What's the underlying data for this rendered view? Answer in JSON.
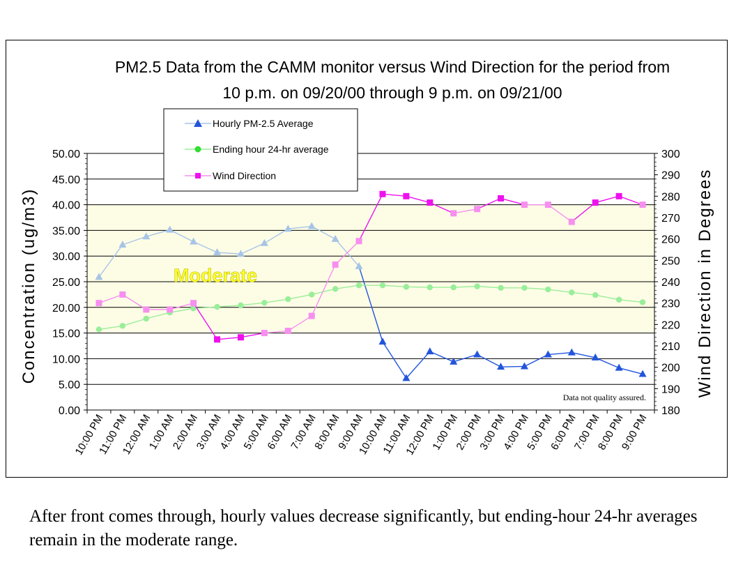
{
  "caption": "After front comes through, hourly values decrease significantly, but ending-hour 24-hr averages remain in the moderate range.",
  "chart_data": {
    "type": "line",
    "title_lines": [
      "PM2.5 Data from the CAMM monitor versus Wind Direction for the period from",
      "10 p.m. on 09/20/00 through 9 p.m. on 09/21/00"
    ],
    "categories": [
      "10:00 PM",
      "11:00 PM",
      "12:00 AM",
      "1:00 AM",
      "2:00 AM",
      "3:00 AM",
      "4:00 AM",
      "5:00 AM",
      "6:00 AM",
      "7:00 AM",
      "8:00 AM",
      "9:00 AM",
      "10:00 AM",
      "11:00 AM",
      "12:00 PM",
      "1:00 PM",
      "2:00 PM",
      "3:00 PM",
      "4:00 PM",
      "5:00 PM",
      "6:00 PM",
      "7:00 PM",
      "8:00 PM",
      "9:00 PM"
    ],
    "ylabel": "Concentration (ug/m3)",
    "y2label": "Wind Direction in Degrees",
    "ylim": [
      0,
      50
    ],
    "y2lim": [
      180,
      300
    ],
    "y_ticks": [
      "0.00",
      "5.00",
      "10.00",
      "15.00",
      "20.00",
      "25.00",
      "30.00",
      "35.00",
      "40.00",
      "45.00",
      "50.00"
    ],
    "y2_ticks": [
      "180",
      "190",
      "200",
      "210",
      "220",
      "230",
      "240",
      "250",
      "260",
      "270",
      "280",
      "290",
      "300"
    ],
    "band": {
      "label": "Moderate",
      "range": [
        15,
        40
      ],
      "color": "#fdfde6"
    },
    "legend_position": "top-left",
    "note": "Data not quality assured.",
    "series": [
      {
        "name": "Hourly PM-2.5 Average",
        "axis": "left",
        "marker": "triangle",
        "color": "#2255dd",
        "light_color": "#a7c4e6",
        "values": [
          25.9,
          32.2,
          33.8,
          35.1,
          32.8,
          30.7,
          30.4,
          32.5,
          35.3,
          35.8,
          33.3,
          28.0,
          13.3,
          6.2,
          11.4,
          9.4,
          10.8,
          8.4,
          8.5,
          10.8,
          11.2,
          10.2,
          8.2,
          7.0
        ]
      },
      {
        "name": "Ending hour 24-hr average",
        "axis": "left",
        "marker": "circle",
        "color": "#33dd33",
        "light_color": "#99ee99",
        "values": [
          15.7,
          16.4,
          17.8,
          19.0,
          19.8,
          20.1,
          20.4,
          20.9,
          21.6,
          22.5,
          23.6,
          24.3,
          24.3,
          24.0,
          23.9,
          23.9,
          24.1,
          23.8,
          23.8,
          23.5,
          22.9,
          22.4,
          21.5,
          21.0
        ]
      },
      {
        "name": "Wind Direction",
        "axis": "right",
        "marker": "square",
        "color": "#ee11ee",
        "light_color": "#f78fef",
        "values": [
          230,
          234,
          227,
          227,
          230,
          213,
          214,
          216,
          217,
          224,
          248,
          259,
          281,
          280,
          277,
          272,
          274,
          279,
          276,
          276,
          268,
          277,
          280,
          276
        ]
      }
    ]
  }
}
